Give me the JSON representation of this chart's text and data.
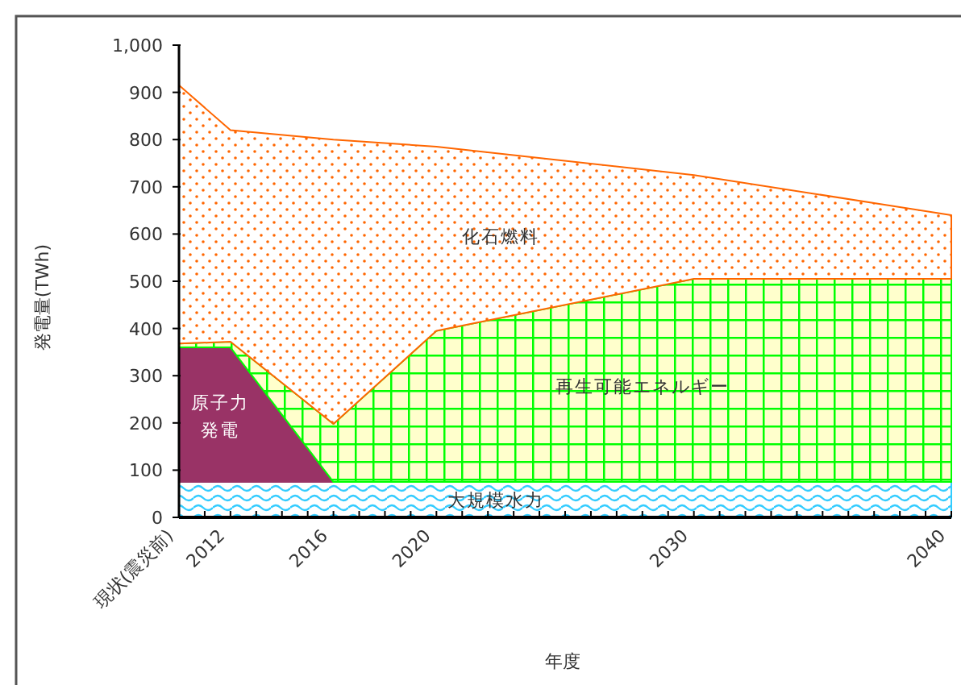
{
  "chart_data": {
    "type": "area",
    "stacked": true,
    "xlabel": "年度",
    "ylabel": "発電量(TWh)",
    "x": [
      2010,
      2012,
      2016,
      2020,
      2030,
      2040
    ],
    "series": [
      {
        "name": "大規模水力",
        "color": "#33ccff",
        "values": [
          75,
          75,
          75,
          75,
          75,
          75
        ]
      },
      {
        "name": "原子力発電",
        "color": "#993366",
        "values": [
          285,
          285,
          0,
          0,
          0,
          0
        ]
      },
      {
        "name": "再生可能エネルギー",
        "color": "#00ff00",
        "values": [
          8,
          12,
          123,
          320,
          430,
          430
        ]
      },
      {
        "name": "化石燃料",
        "color": "#ff6600",
        "values": [
          547,
          448,
          602,
          390,
          220,
          135
        ]
      }
    ],
    "xlim": [
      2010,
      2040
    ],
    "xticks": [
      {
        "value": 2010,
        "label": "現状(震災前)"
      },
      {
        "value": 2011,
        "label": null
      },
      2012,
      {
        "value": 2013,
        "label": null
      },
      {
        "value": 2014,
        "label": null
      },
      {
        "value": 2015,
        "label": null
      },
      2016,
      {
        "value": 2017,
        "label": null
      },
      {
        "value": 2018,
        "label": null
      },
      {
        "value": 2019,
        "label": null
      },
      2020,
      {
        "value": 2021,
        "label": null
      },
      {
        "value": 2022,
        "label": null
      },
      {
        "value": 2023,
        "label": null
      },
      {
        "value": 2024,
        "label": null
      },
      {
        "value": 2025,
        "label": null
      },
      {
        "value": 2026,
        "label": null
      },
      {
        "value": 2027,
        "label": null
      },
      {
        "value": 2028,
        "label": null
      },
      {
        "value": 2029,
        "label": null
      },
      2030,
      {
        "value": 2031,
        "label": null
      },
      {
        "value": 2032,
        "label": null
      },
      {
        "value": 2033,
        "label": null
      },
      {
        "value": 2034,
        "label": null
      },
      {
        "value": 2035,
        "label": null
      },
      {
        "value": 2036,
        "label": null
      },
      {
        "value": 2037,
        "label": null
      },
      {
        "value": 2038,
        "label": null
      },
      {
        "value": 2039,
        "label": null
      },
      2040
    ],
    "ylim": [
      0,
      1000
    ],
    "yticks": [
      0,
      100,
      200,
      300,
      400,
      500,
      600,
      700,
      800,
      900,
      {
        "value": 1000,
        "label": "1,000"
      }
    ]
  }
}
